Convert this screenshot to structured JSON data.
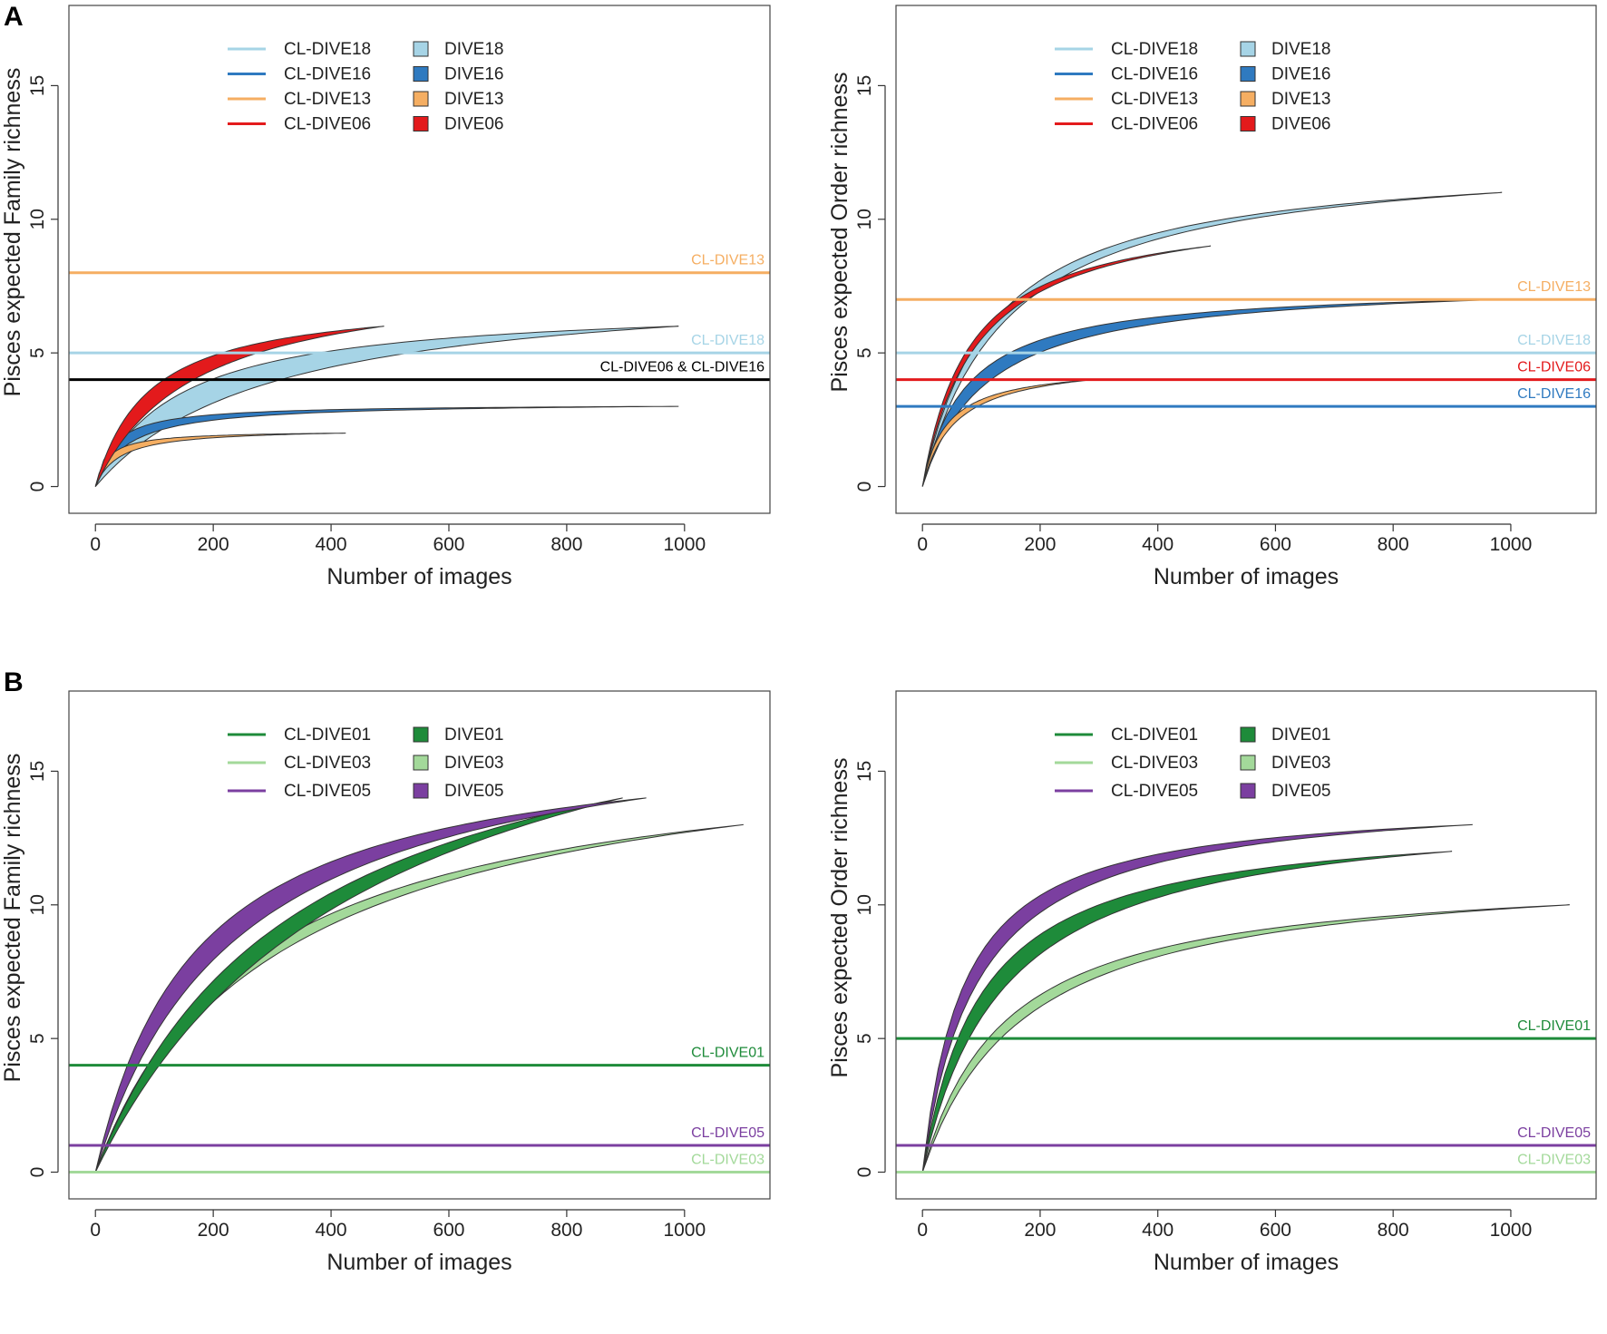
{
  "panels": [
    {
      "letter": "A"
    },
    {
      "letter": "B"
    }
  ],
  "colors": {
    "DIVE18": "#a6d4e6",
    "DIVE16": "#2f7ac0",
    "DIVE13": "#f5ae62",
    "DIVE06": "#e31a1c",
    "DIVE01": "#1e8b3a",
    "DIVE03": "#a3d99a",
    "DIVE05": "#7b3fa0",
    "black": "#000000"
  },
  "chart_data": [
    {
      "type": "area",
      "panel": "A",
      "title": "",
      "xlabel": "Number of images",
      "ylabel": "Pisces expected Family richness",
      "xlim": [
        -45,
        1145
      ],
      "ylim": [
        -1,
        18
      ],
      "xticks": [
        0,
        200,
        400,
        600,
        800,
        1000
      ],
      "yticks": [
        0,
        5,
        10,
        15
      ],
      "legend": {
        "position": "top-center",
        "lines": [
          {
            "label": "CL-DIVE18",
            "color": "DIVE18"
          },
          {
            "label": "CL-DIVE16",
            "color": "DIVE16"
          },
          {
            "label": "CL-DIVE13",
            "color": "DIVE13"
          },
          {
            "label": "CL-DIVE06",
            "color": "DIVE06"
          }
        ],
        "fills": [
          {
            "label": "DIVE18",
            "color": "DIVE18"
          },
          {
            "label": "DIVE16",
            "color": "DIVE16"
          },
          {
            "label": "DIVE13",
            "color": "DIVE13"
          },
          {
            "label": "DIVE06",
            "color": "DIVE06"
          }
        ]
      },
      "hlines": [
        {
          "label": "CL-DIVE13",
          "y": 8,
          "color": "DIVE13",
          "label_color": "DIVE13"
        },
        {
          "label": "CL-DIVE18",
          "y": 5,
          "color": "DIVE18",
          "label_color": "DIVE18"
        },
        {
          "label": "CL-DIVE06 & CL-DIVE16",
          "y": 4,
          "color": "black",
          "label_color": "black"
        }
      ],
      "series": [
        {
          "name": "DIVE18",
          "color": "DIVE18",
          "n_max": 990,
          "final": 6,
          "k_upper": 140,
          "k_lower": 300
        },
        {
          "name": "DIVE16",
          "color": "DIVE16",
          "n_max": 990,
          "final": 3,
          "k_upper": 30,
          "k_lower": 55
        },
        {
          "name": "DIVE13",
          "color": "DIVE13",
          "n_max": 425,
          "final": 2,
          "k_upper": 20,
          "k_lower": 40
        },
        {
          "name": "DIVE06",
          "color": "DIVE06",
          "n_max": 490,
          "final": 6,
          "k_upper": 90,
          "k_lower": 170
        }
      ]
    },
    {
      "type": "area",
      "panel": "A",
      "title": "",
      "xlabel": "Number of images",
      "ylabel": "Pisces expected Order richness",
      "xlim": [
        -45,
        1145
      ],
      "ylim": [
        -1,
        18
      ],
      "xticks": [
        0,
        200,
        400,
        600,
        800,
        1000
      ],
      "yticks": [
        0,
        5,
        10,
        15
      ],
      "legend": {
        "position": "top-center",
        "lines": [
          {
            "label": "CL-DIVE18",
            "color": "DIVE18"
          },
          {
            "label": "CL-DIVE16",
            "color": "DIVE16"
          },
          {
            "label": "CL-DIVE13",
            "color": "DIVE13"
          },
          {
            "label": "CL-DIVE06",
            "color": "DIVE06"
          }
        ],
        "fills": [
          {
            "label": "DIVE18",
            "color": "DIVE18"
          },
          {
            "label": "DIVE16",
            "color": "DIVE16"
          },
          {
            "label": "DIVE13",
            "color": "DIVE13"
          },
          {
            "label": "DIVE06",
            "color": "DIVE06"
          }
        ]
      },
      "hlines": [
        {
          "label": "CL-DIVE13",
          "y": 7,
          "color": "DIVE13",
          "label_color": "DIVE13"
        },
        {
          "label": "CL-DIVE18",
          "y": 5,
          "color": "DIVE18",
          "label_color": "DIVE18"
        },
        {
          "label": "CL-DIVE06",
          "y": 4,
          "color": "DIVE06",
          "label_color": "DIVE06"
        },
        {
          "label": "CL-DIVE16",
          "y": 3,
          "color": "DIVE16",
          "label_color": "DIVE16"
        }
      ],
      "series": [
        {
          "name": "DIVE18",
          "color": "DIVE18",
          "n_max": 985,
          "final": 11,
          "k_upper": 120,
          "k_lower": 145
        },
        {
          "name": "DIVE16",
          "color": "DIVE16",
          "n_max": 985,
          "final": 7,
          "k_upper": 75,
          "k_lower": 110
        },
        {
          "name": "DIVE13",
          "color": "DIVE13",
          "n_max": 290,
          "final": 4,
          "k_upper": 40,
          "k_lower": 55
        },
        {
          "name": "DIVE06",
          "color": "DIVE06",
          "n_max": 490,
          "final": 9,
          "k_upper": 80,
          "k_lower": 95
        }
      ]
    },
    {
      "type": "area",
      "panel": "B",
      "title": "",
      "xlabel": "Number of images",
      "ylabel": "Pisces expected Family richness",
      "xlim": [
        -45,
        1145
      ],
      "ylim": [
        -1,
        18
      ],
      "xticks": [
        0,
        200,
        400,
        600,
        800,
        1000
      ],
      "yticks": [
        0,
        5,
        10,
        15
      ],
      "legend": {
        "position": "top-center",
        "lines": [
          {
            "label": "CL-DIVE01",
            "color": "DIVE01"
          },
          {
            "label": "CL-DIVE03",
            "color": "DIVE03"
          },
          {
            "label": "CL-DIVE05",
            "color": "DIVE05"
          }
        ],
        "fills": [
          {
            "label": "DIVE01",
            "color": "DIVE01"
          },
          {
            "label": "DIVE03",
            "color": "DIVE03"
          },
          {
            "label": "DIVE05",
            "color": "DIVE05"
          }
        ]
      },
      "hlines": [
        {
          "label": "CL-DIVE01",
          "y": 4,
          "color": "DIVE01",
          "label_color": "DIVE01"
        },
        {
          "label": "CL-DIVE05",
          "y": 1,
          "color": "DIVE05",
          "label_color": "DIVE05"
        },
        {
          "label": "CL-DIVE03",
          "y": 0,
          "color": "DIVE03",
          "label_color": "DIVE03"
        }
      ],
      "series": [
        {
          "name": "DIVE03",
          "color": "DIVE03",
          "n_max": 1100,
          "final": 13,
          "k_upper": 270,
          "k_lower": 330
        },
        {
          "name": "DIVE01",
          "color": "DIVE01",
          "n_max": 895,
          "final": 14,
          "k_upper": 340,
          "k_lower": 470
        },
        {
          "name": "DIVE05",
          "color": "DIVE05",
          "n_max": 935,
          "final": 14,
          "k_upper": 170,
          "k_lower": 245
        }
      ]
    },
    {
      "type": "area",
      "panel": "B",
      "title": "",
      "xlabel": "Number of images",
      "ylabel": "Pisces expected Order richness",
      "xlim": [
        -45,
        1145
      ],
      "ylim": [
        -1,
        18
      ],
      "xticks": [
        0,
        200,
        400,
        600,
        800,
        1000
      ],
      "yticks": [
        0,
        5,
        10,
        15
      ],
      "legend": {
        "position": "top-center",
        "lines": [
          {
            "label": "CL-DIVE01",
            "color": "DIVE01"
          },
          {
            "label": "CL-DIVE03",
            "color": "DIVE03"
          },
          {
            "label": "CL-DIVE05",
            "color": "DIVE05"
          }
        ],
        "fills": [
          {
            "label": "DIVE01",
            "color": "DIVE01"
          },
          {
            "label": "DIVE03",
            "color": "DIVE03"
          },
          {
            "label": "DIVE05",
            "color": "DIVE05"
          }
        ]
      },
      "hlines": [
        {
          "label": "CL-DIVE01",
          "y": 5,
          "color": "DIVE01",
          "label_color": "DIVE01"
        },
        {
          "label": "CL-DIVE05",
          "y": 1,
          "color": "DIVE05",
          "label_color": "DIVE05"
        },
        {
          "label": "CL-DIVE03",
          "y": 0,
          "color": "DIVE03",
          "label_color": "DIVE03"
        }
      ],
      "series": [
        {
          "name": "DIVE03",
          "color": "DIVE03",
          "n_max": 1100,
          "final": 10,
          "k_upper": 140,
          "k_lower": 175
        },
        {
          "name": "DIVE01",
          "color": "DIVE01",
          "n_max": 900,
          "final": 12,
          "k_upper": 100,
          "k_lower": 140
        },
        {
          "name": "DIVE05",
          "color": "DIVE05",
          "n_max": 935,
          "final": 13,
          "k_upper": 70,
          "k_lower": 95
        }
      ]
    }
  ]
}
